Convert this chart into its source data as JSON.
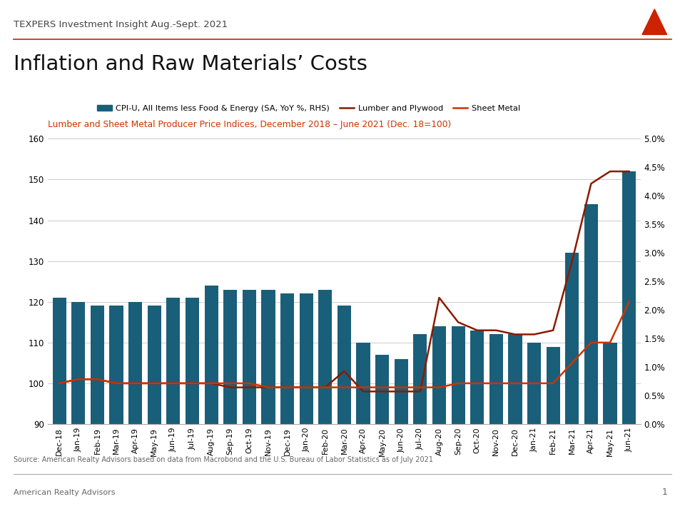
{
  "title": "Inflation and Raw Materials’ Costs",
  "header": "TEXPERS Investment Insight Aug.-Sept. 2021",
  "subtitle": "Lumber and Sheet Metal Producer Price Indices, December 2018 – June 2021 (Dec. 18=100)",
  "source": "Source: American Realty Advisors based on data from Macrobond and the U.S. Bureau of Labor Statistics as of July 2021",
  "footer": "American Realty Advisors",
  "page": "1",
  "categories": [
    "Dec-18",
    "Jan-19",
    "Feb-19",
    "Mar-19",
    "Apr-19",
    "May-19",
    "Jun-19",
    "Jul-19",
    "Aug-19",
    "Sep-19",
    "Oct-19",
    "Nov-19",
    "Dec-19",
    "Jan-20",
    "Feb-20",
    "Mar-20",
    "Apr-20",
    "May-20",
    "Jun-20",
    "Jul-20",
    "Aug-20",
    "Sep-20",
    "Oct-20",
    "Nov-20",
    "Dec-20",
    "Jan-21",
    "Feb-21",
    "Mar-21",
    "Apr-21",
    "May-21",
    "Jun-21"
  ],
  "bar_values": [
    121,
    120,
    119,
    119,
    120,
    119,
    121,
    121,
    124,
    123,
    123,
    123,
    122,
    122,
    123,
    119,
    110,
    107,
    106,
    112,
    114,
    114,
    113,
    112,
    112,
    110,
    109,
    132,
    144,
    110,
    152
  ],
  "lumber_values": [
    100,
    101,
    101,
    100,
    100,
    100,
    100,
    100,
    100,
    99,
    99,
    99,
    99,
    99,
    99,
    103,
    98,
    98,
    98,
    98,
    121,
    115,
    113,
    113,
    112,
    112,
    113,
    130,
    149,
    152,
    152
  ],
  "sheet_metal_values": [
    100,
    101,
    101,
    100,
    100,
    100,
    100,
    100,
    100,
    100,
    100,
    99,
    99,
    99,
    99,
    99,
    99,
    99,
    99,
    99,
    99,
    100,
    100,
    100,
    100,
    100,
    100,
    105,
    110,
    110,
    120
  ],
  "bar_color": "#1a5f7a",
  "lumber_color": "#8B1A00",
  "sheet_metal_color": "#CC3300",
  "header_color": "#444444",
  "subtitle_color": "#CC3300",
  "title_color": "#111111",
  "separator_color": "#CC2200",
  "logo_color": "#CC2200",
  "ylim_left": [
    90,
    160
  ],
  "ylim_right": [
    0.0,
    5.0
  ],
  "yticks_left": [
    90,
    100,
    110,
    120,
    130,
    140,
    150,
    160
  ],
  "yticks_right": [
    0.0,
    0.5,
    1.0,
    1.5,
    2.0,
    2.5,
    3.0,
    3.5,
    4.0,
    4.5,
    5.0
  ],
  "background_color": "#ffffff",
  "grid_color": "#cccccc",
  "source_color": "#666666",
  "footer_color": "#666666"
}
